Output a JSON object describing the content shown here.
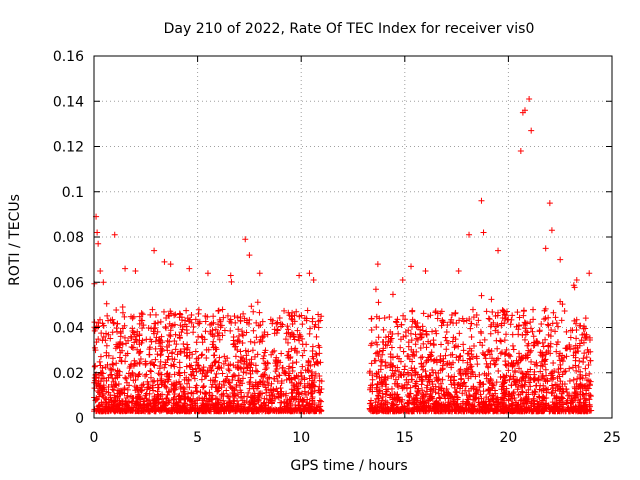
{
  "chart_data": {
    "type": "scatter",
    "title": "Day 210 of 2022, Rate Of TEC Index for receiver vis0",
    "xlabel": "GPS time / hours",
    "ylabel": "ROTI / TECUs",
    "xlim": [
      0,
      25
    ],
    "ylim": [
      0,
      0.16
    ],
    "x_ticks": [
      "0",
      "5",
      "10",
      "15",
      "20",
      "25"
    ],
    "y_ticks": [
      "0",
      "0.02",
      "0.04",
      "0.06",
      "0.08",
      "0.1",
      "0.12",
      "0.14",
      "0.16"
    ],
    "grid": true,
    "marker": "+",
    "color": "#ff0000",
    "data_gap_hours": [
      11.0,
      13.3
    ],
    "series": [
      {
        "x": [
          0.1,
          0.15,
          0.2,
          0.3,
          0.45,
          1.0,
          1.5,
          2.0,
          2.9,
          3.4,
          3.7,
          4.6,
          5.5,
          6.6,
          7.3,
          7.5,
          8.0,
          9.9,
          10.4,
          10.6,
          13.4,
          13.7,
          14.9,
          15.3,
          16.0,
          17.6,
          18.1,
          18.7,
          18.8,
          19.5,
          20.6,
          20.7,
          20.8,
          21.0,
          21.1,
          21.8,
          22.0,
          22.1,
          22.5,
          23.3,
          23.9
        ],
        "y": [
          0.089,
          0.082,
          0.077,
          0.065,
          0.06,
          0.081,
          0.066,
          0.065,
          0.074,
          0.069,
          0.068,
          0.066,
          0.064,
          0.063,
          0.079,
          0.072,
          0.064,
          0.063,
          0.064,
          0.061,
          0.044,
          0.068,
          0.061,
          0.067,
          0.065,
          0.065,
          0.081,
          0.096,
          0.082,
          0.074,
          0.118,
          0.135,
          0.136,
          0.141,
          0.127,
          0.075,
          0.095,
          0.083,
          0.07,
          0.061,
          0.064
        ]
      }
    ]
  }
}
